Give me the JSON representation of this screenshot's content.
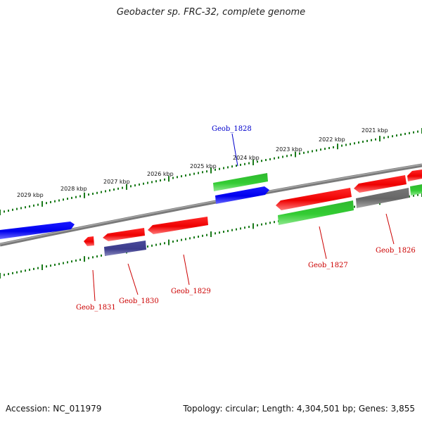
{
  "title": "Geobacter sp. FRC-32, complete genome",
  "footer": {
    "accession": "Accession: NC_011979",
    "summary": "Topology: circular; Length: 4,304,501 bp; Genes: 3,855"
  },
  "colors": {
    "backbone": "#808080",
    "ticks": "#1a7a1a",
    "red": "#ee0000",
    "green": "#33cc33",
    "blue": "#0000ee",
    "navy": "#3c3c8c",
    "gray": "#666666",
    "label_red": "#cc0000",
    "label_blue": "#0000cc"
  },
  "kbp_labels": [
    "2021 kbp",
    "2022 kbp",
    "2023 kbp",
    "2024 kbp",
    "2025 kbp",
    "2026 kbp",
    "2027 kbp",
    "2028 kbp",
    "2029 kbp"
  ],
  "gene_labels": {
    "geob_1826": "Geob_1826",
    "geob_1827": "Geob_1827",
    "geob_1828": "Geob_1828",
    "geob_1829": "Geob_1829",
    "geob_1830": "Geob_1830",
    "geob_1831": "Geob_1831"
  }
}
